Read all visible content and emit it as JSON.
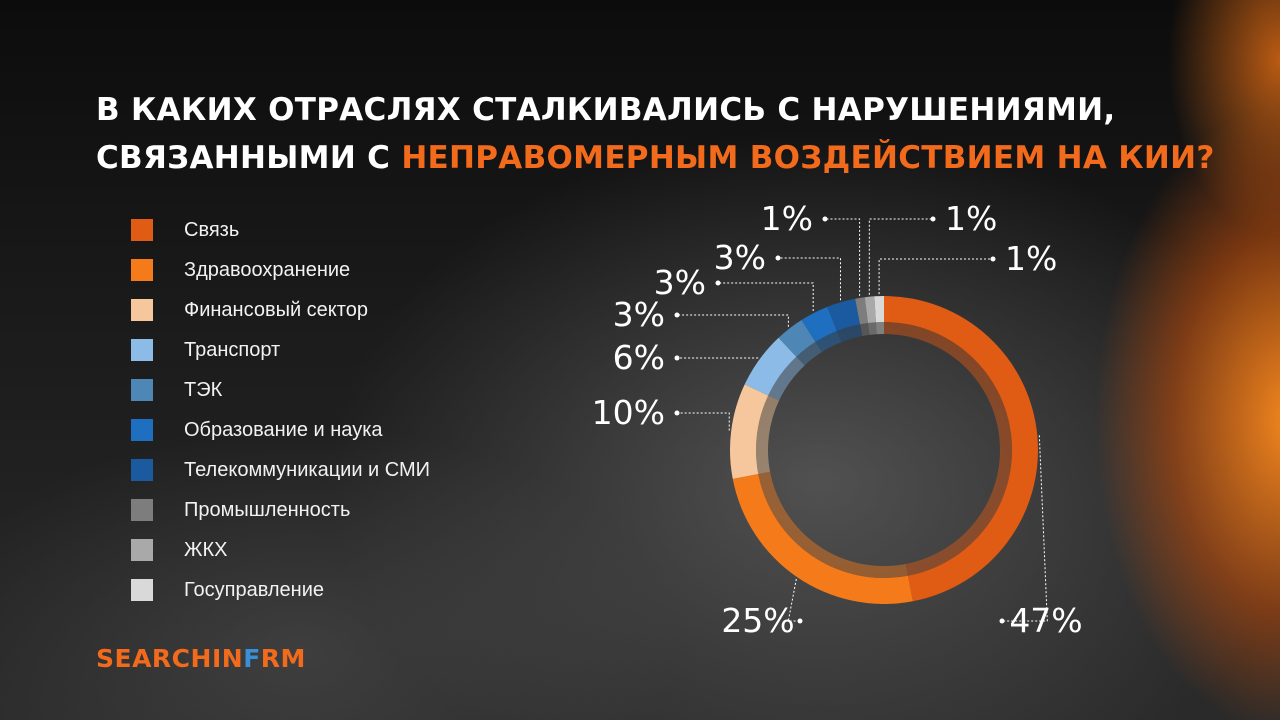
{
  "title": {
    "line1": "В каких отраслях сталкивались с нарушениями,",
    "line2_prefix": "связанными с ",
    "line2_accent": "неправомерным воздействием на КИИ?"
  },
  "brand": {
    "part1": "SEARCHIN",
    "part2": "F",
    "part3": "RM"
  },
  "legend": [
    {
      "label": "Связь",
      "color": "#e05c14"
    },
    {
      "label": "Здравоохранение",
      "color": "#f47a1a"
    },
    {
      "label": "Финансовый сектор",
      "color": "#f6c79c"
    },
    {
      "label": "Транспорт",
      "color": "#8bbbe6"
    },
    {
      "label": "ТЭК",
      "color": "#4e86b6"
    },
    {
      "label": "Образование и наука",
      "color": "#1e6fbf"
    },
    {
      "label": "Телекоммуникации и СМИ",
      "color": "#1c5aa0"
    },
    {
      "label": "Промышленность",
      "color": "#7d7d7d"
    },
    {
      "label": "ЖКХ",
      "color": "#a9a9a9"
    },
    {
      "label": "Госуправление",
      "color": "#d9d9d9"
    }
  ],
  "chart_data": {
    "type": "pie",
    "variant": "donut",
    "categories": [
      "Связь",
      "Здравоохранение",
      "Финансовый сектор",
      "Транспорт",
      "ТЭК",
      "Образование и наука",
      "Телекоммуникации и СМИ",
      "Промышленность",
      "ЖКХ",
      "Госуправление"
    ],
    "values": [
      47,
      25,
      10,
      6,
      3,
      3,
      3,
      1,
      1,
      1
    ],
    "data_labels": [
      "47%",
      "25%",
      "10%",
      "6%",
      "3%",
      "3%",
      "3%",
      "1%",
      "1%",
      "1%"
    ],
    "colors": [
      "#e05c14",
      "#f47a1a",
      "#f6c79c",
      "#8bbbe6",
      "#4e86b6",
      "#1e6fbf",
      "#1c5aa0",
      "#7d7d7d",
      "#a9a9a9",
      "#d9d9d9"
    ],
    "start": "top",
    "direction": "clockwise",
    "legend_position": "left"
  }
}
